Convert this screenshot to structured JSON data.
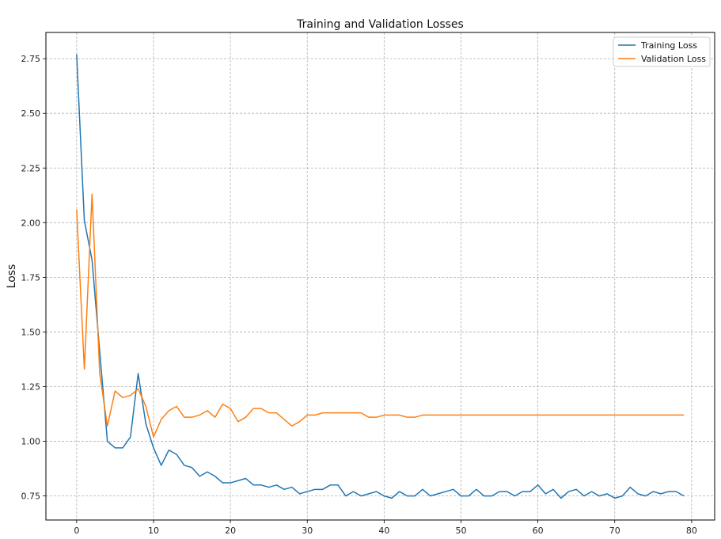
{
  "chart_data": {
    "type": "line",
    "title": "Training and Validation Losses",
    "xlabel": "",
    "ylabel": "Loss",
    "xlim": [
      -4,
      83
    ],
    "ylim": [
      0.64,
      2.87
    ],
    "xticks": [
      0,
      10,
      20,
      30,
      40,
      50,
      60,
      70,
      80
    ],
    "yticks": [
      0.75,
      1.0,
      1.25,
      1.5,
      1.75,
      2.0,
      2.25,
      2.5,
      2.75
    ],
    "grid": true,
    "legend_position": "top-right",
    "series": [
      {
        "name": "Training Loss",
        "color": "#1f77b4",
        "values": [
          2.77,
          2.01,
          1.83,
          1.41,
          1.0,
          0.97,
          0.97,
          1.02,
          1.31,
          1.08,
          0.97,
          0.89,
          0.96,
          0.94,
          0.89,
          0.88,
          0.84,
          0.86,
          0.84,
          0.81,
          0.81,
          0.82,
          0.83,
          0.8,
          0.8,
          0.79,
          0.8,
          0.78,
          0.79,
          0.76,
          0.77,
          0.78,
          0.78,
          0.8,
          0.8,
          0.75,
          0.77,
          0.75,
          0.76,
          0.77,
          0.75,
          0.74,
          0.77,
          0.75,
          0.75,
          0.78,
          0.75,
          0.76,
          0.77,
          0.78,
          0.75,
          0.75,
          0.78,
          0.75,
          0.75,
          0.77,
          0.77,
          0.75,
          0.77,
          0.77,
          0.8,
          0.76,
          0.78,
          0.74,
          0.77,
          0.78,
          0.75,
          0.77,
          0.75,
          0.76,
          0.74,
          0.75,
          0.79,
          0.76,
          0.75,
          0.77,
          0.76,
          0.77,
          0.77,
          0.75
        ]
      },
      {
        "name": "Validation Loss",
        "color": "#ff7f0e",
        "values": [
          2.06,
          1.33,
          2.13,
          1.31,
          1.07,
          1.23,
          1.2,
          1.21,
          1.24,
          1.16,
          1.02,
          1.1,
          1.14,
          1.16,
          1.11,
          1.11,
          1.12,
          1.14,
          1.11,
          1.17,
          1.15,
          1.09,
          1.11,
          1.15,
          1.15,
          1.13,
          1.13,
          1.1,
          1.07,
          1.09,
          1.12,
          1.12,
          1.13,
          1.13,
          1.13,
          1.13,
          1.13,
          1.13,
          1.11,
          1.11,
          1.12,
          1.12,
          1.12,
          1.11,
          1.11,
          1.12,
          1.12,
          1.12,
          1.12,
          1.12,
          1.12,
          1.12,
          1.12,
          1.12,
          1.12,
          1.12,
          1.12,
          1.12,
          1.12,
          1.12,
          1.12,
          1.12,
          1.12,
          1.12,
          1.12,
          1.12,
          1.12,
          1.12,
          1.12,
          1.12,
          1.12,
          1.12,
          1.12,
          1.12,
          1.12,
          1.12,
          1.12,
          1.12,
          1.12,
          1.12
        ]
      }
    ]
  }
}
